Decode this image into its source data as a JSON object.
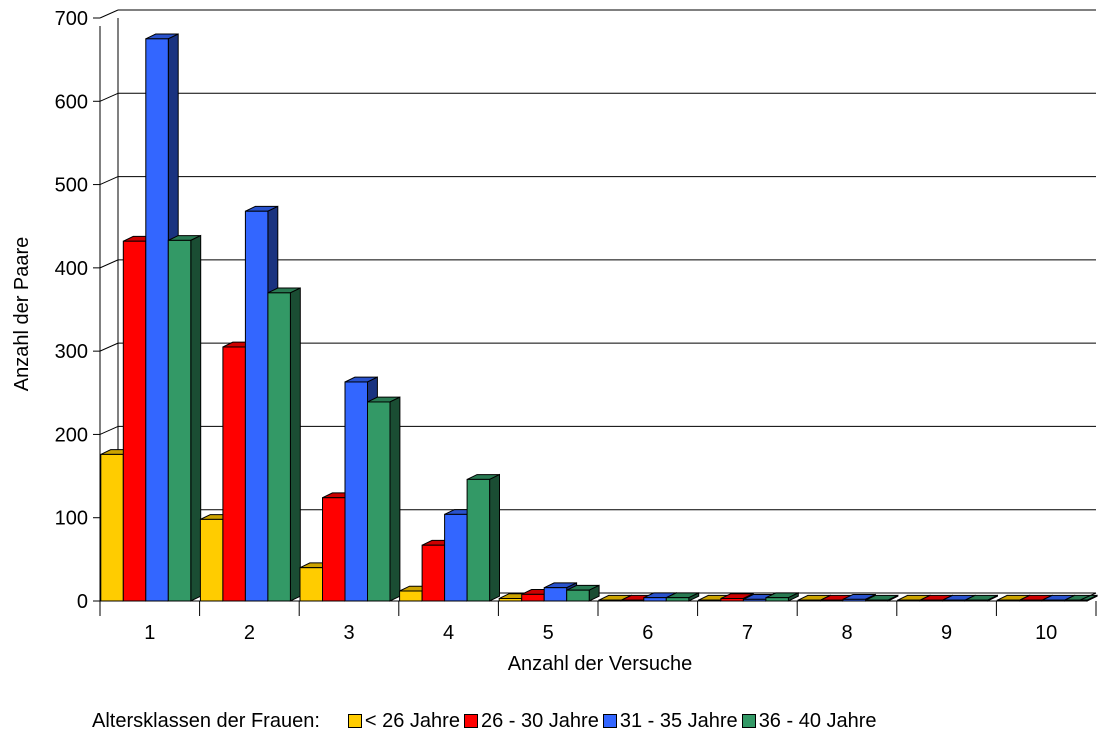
{
  "chart_data": {
    "type": "bar",
    "title": "",
    "xlabel": "Anzahl der Versuche",
    "ylabel": "Anzahl der Paare",
    "ylim": [
      0,
      700
    ],
    "yticks": [
      0,
      100,
      200,
      300,
      400,
      500,
      600,
      700
    ],
    "grid": true,
    "legend_position": "bottom",
    "legend_title": "Altersklassen der Frauen:",
    "categories": [
      "1",
      "2",
      "3",
      "4",
      "5",
      "6",
      "7",
      "8",
      "9",
      "10"
    ],
    "series": [
      {
        "name": "< 26 Jahre",
        "color": "#FFCC00",
        "values": [
          176,
          98,
          40,
          12,
          3,
          1,
          1,
          1,
          1,
          1
        ]
      },
      {
        "name": "26 - 30 Jahre",
        "color": "#FF0000",
        "values": [
          432,
          305,
          124,
          67,
          8,
          1,
          3,
          1,
          1,
          1
        ]
      },
      {
        "name": "31 - 35 Jahre",
        "color": "#3366FF",
        "values": [
          675,
          468,
          263,
          104,
          16,
          4,
          2,
          2,
          1,
          1
        ]
      },
      {
        "name": "36 - 40 Jahre",
        "color": "#339966",
        "values": [
          433,
          370,
          239,
          146,
          13,
          4,
          4,
          1,
          1,
          1
        ]
      }
    ]
  }
}
